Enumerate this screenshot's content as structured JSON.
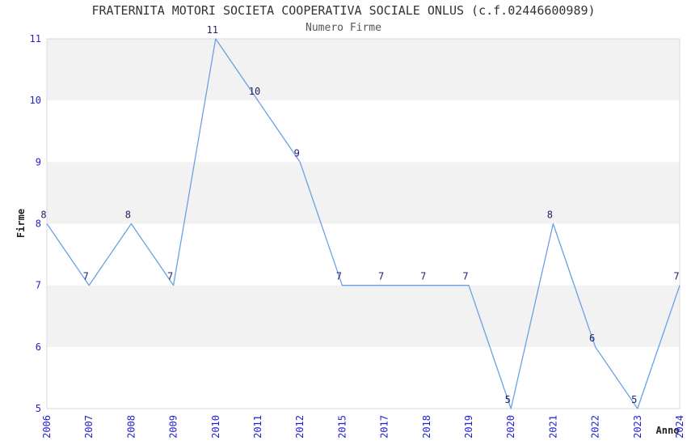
{
  "chart_data": {
    "type": "line",
    "title": "FRATERNITA MOTORI SOCIETA COOPERATIVA SOCIALE ONLUS (c.f.02446600989)",
    "subtitle": "Numero Firme",
    "xlabel": "Anno",
    "ylabel": "Firme",
    "categories": [
      "2006",
      "2007",
      "2008",
      "2009",
      "2010",
      "2011",
      "2012",
      "2015",
      "2017",
      "2018",
      "2019",
      "2020",
      "2021",
      "2022",
      "2023",
      "2024"
    ],
    "values": [
      8,
      7,
      8,
      7,
      11,
      10,
      9,
      7,
      7,
      7,
      7,
      5,
      8,
      6,
      5,
      7
    ],
    "ylim": [
      5,
      11
    ],
    "yticks": [
      5,
      6,
      7,
      8,
      9,
      10,
      11
    ],
    "point_labels_shown": true,
    "legend": "none",
    "grid": "alternating-horizontal-bands",
    "colors": {
      "line": "#69a1e4",
      "tick_label": "#2222cc",
      "point_label": "#22226b",
      "band": "#f2f2f2",
      "plot_border": "#d9d9d9",
      "title": "#333333",
      "subtitle": "#555555",
      "axis_title": "#222222",
      "background": "#ffffff"
    }
  }
}
